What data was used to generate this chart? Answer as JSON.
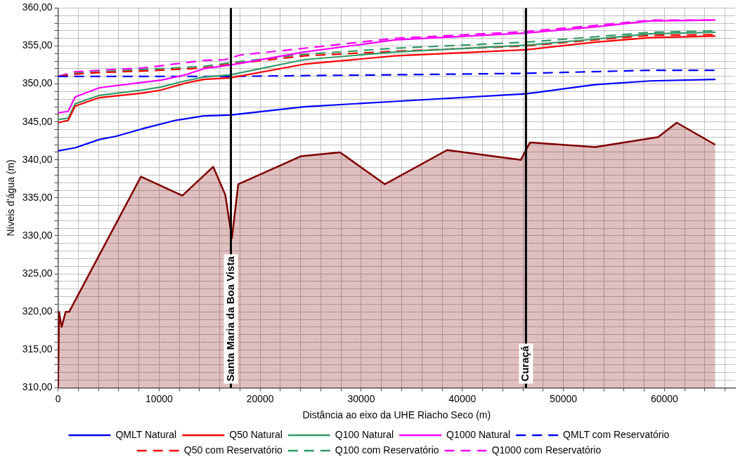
{
  "chart_data": {
    "type": "line",
    "xlabel": "Distância ao eixo da UHE Riacho Seco (m)",
    "ylabel": "Níveis d'água (m)",
    "xlim": [
      0,
      67000
    ],
    "xticks": [
      0,
      {
        "value": 2000,
        "label": null
      },
      {
        "value": 4000,
        "label": null
      },
      {
        "value": 6000,
        "label": null
      },
      {
        "value": 8000,
        "label": null
      },
      10000,
      {
        "value": 12000,
        "label": null
      },
      {
        "value": 14000,
        "label": null
      },
      {
        "value": 16000,
        "label": null
      },
      {
        "value": 18000,
        "label": null
      },
      20000,
      {
        "value": 22000,
        "label": null
      },
      {
        "value": 24000,
        "label": null
      },
      {
        "value": 26000,
        "label": null
      },
      {
        "value": 28000,
        "label": null
      },
      30000,
      {
        "value": 32000,
        "label": null
      },
      {
        "value": 34000,
        "label": null
      },
      {
        "value": 36000,
        "label": null
      },
      {
        "value": 38000,
        "label": null
      },
      40000,
      {
        "value": 42000,
        "label": null
      },
      {
        "value": 44000,
        "label": null
      },
      {
        "value": 46000,
        "label": null
      },
      {
        "value": 48000,
        "label": null
      },
      50000,
      {
        "value": 52000,
        "label": null
      },
      {
        "value": 54000,
        "label": null
      },
      {
        "value": 56000,
        "label": null
      },
      {
        "value": 58000,
        "label": null
      },
      60000,
      {
        "value": 62000,
        "label": null
      },
      {
        "value": 64000,
        "label": null
      },
      {
        "value": 66000,
        "label": null
      }
    ],
    "ylim": [
      310,
      360
    ],
    "yticks": [
      {
        "value": 310,
        "label": "310,00"
      },
      {
        "value": 311,
        "label": null
      },
      {
        "value": 312,
        "label": null
      },
      {
        "value": 313,
        "label": null
      },
      {
        "value": 314,
        "label": null
      },
      {
        "value": 315,
        "label": "315,00"
      },
      {
        "value": 316,
        "label": null
      },
      {
        "value": 317,
        "label": null
      },
      {
        "value": 318,
        "label": null
      },
      {
        "value": 319,
        "label": null
      },
      {
        "value": 320,
        "label": "320,00"
      },
      {
        "value": 321,
        "label": null
      },
      {
        "value": 322,
        "label": null
      },
      {
        "value": 323,
        "label": null
      },
      {
        "value": 324,
        "label": null
      },
      {
        "value": 325,
        "label": "325,00"
      },
      {
        "value": 326,
        "label": null
      },
      {
        "value": 327,
        "label": null
      },
      {
        "value": 328,
        "label": null
      },
      {
        "value": 329,
        "label": null
      },
      {
        "value": 330,
        "label": "330,00"
      },
      {
        "value": 331,
        "label": null
      },
      {
        "value": 332,
        "label": null
      },
      {
        "value": 333,
        "label": null
      },
      {
        "value": 334,
        "label": null
      },
      {
        "value": 335,
        "label": "335,00"
      },
      {
        "value": 336,
        "label": null
      },
      {
        "value": 337,
        "label": null
      },
      {
        "value": 338,
        "label": null
      },
      {
        "value": 339,
        "label": null
      },
      {
        "value": 340,
        "label": "340,00"
      },
      {
        "value": 341,
        "label": null
      },
      {
        "value": 342,
        "label": null
      },
      {
        "value": 343,
        "label": null
      },
      {
        "value": 344,
        "label": null
      },
      {
        "value": 345,
        "label": "345,00"
      },
      {
        "value": 346,
        "label": null
      },
      {
        "value": 347,
        "label": null
      },
      {
        "value": 348,
        "label": null
      },
      {
        "value": 349,
        "label": null
      },
      {
        "value": 350,
        "label": "350,00"
      },
      {
        "value": 351,
        "label": null
      },
      {
        "value": 352,
        "label": null
      },
      {
        "value": 353,
        "label": null
      },
      {
        "value": 354,
        "label": null
      },
      {
        "value": 355,
        "label": "355,00"
      },
      {
        "value": 356,
        "label": null
      },
      {
        "value": 357,
        "label": null
      },
      {
        "value": 358,
        "label": null
      },
      {
        "value": 359,
        "label": null
      },
      {
        "value": 360,
        "label": "360,00"
      }
    ],
    "grid": true,
    "legend": "bottom",
    "marker": "none",
    "series": [
      {
        "type": "area",
        "color": "#800000",
        "line_style": "solid",
        "x": [
          0,
          100,
          350,
          750,
          1100,
          8200,
          12300,
          15350,
          16550,
          17200,
          17830,
          24060,
          27900,
          32340,
          38500,
          45790,
          46700,
          53150,
          59380,
          61220,
          65030
        ],
        "values": [
          310,
          320,
          318,
          320,
          320,
          337.8,
          335.3,
          339.1,
          335.4,
          329.7,
          336.8,
          340.5,
          341.0,
          336.8,
          341.3,
          340.0,
          342.3,
          341.7,
          343.0,
          344.9,
          342.0
        ]
      },
      {
        "name": "QMLT Natural",
        "color": "#0000ff",
        "line_style": "solid",
        "x": [
          0,
          1700,
          4100,
          5700,
          8350,
          11600,
          14400,
          17050,
          24350,
          33300,
          46300,
          53100,
          58600,
          65050
        ],
        "values": [
          341.2,
          341.6,
          342.7,
          343.1,
          344.1,
          345.2,
          345.8,
          345.9,
          347.0,
          347.7,
          348.7,
          349.9,
          350.4,
          350.6
        ]
      },
      {
        "name": "Q50 Natural",
        "color": "#ff0000",
        "line_style": "solid",
        "x": [
          0,
          1000,
          1700,
          4100,
          8350,
          10200,
          12600,
          14400,
          17050,
          24350,
          33300,
          46300,
          53100,
          58600,
          65050
        ],
        "values": [
          344.9,
          345.2,
          347.1,
          348.2,
          348.8,
          349.2,
          350.1,
          350.6,
          350.8,
          352.6,
          353.7,
          354.5,
          355.5,
          356.1,
          356.3
        ]
      },
      {
        "name": "Q100 Natural",
        "color": "#339966",
        "line_style": "solid",
        "x": [
          0,
          1000,
          1700,
          4100,
          8350,
          10200,
          12600,
          14400,
          17050,
          24350,
          33300,
          46300,
          53100,
          58600,
          65050
        ],
        "values": [
          345.3,
          345.5,
          347.4,
          348.5,
          349.2,
          349.6,
          350.4,
          350.9,
          351.2,
          353.2,
          354.2,
          355.1,
          355.9,
          356.6,
          356.8
        ]
      },
      {
        "name": "Q1000 Natural",
        "color": "#ff00ff",
        "line_style": "solid",
        "x": [
          0,
          1000,
          1700,
          4100,
          8350,
          10200,
          12600,
          14400,
          17050,
          24350,
          33300,
          46300,
          53100,
          58600,
          65050
        ],
        "values": [
          346.2,
          346.4,
          348.3,
          349.5,
          350.2,
          350.5,
          351.2,
          352.0,
          352.5,
          354.2,
          355.8,
          356.7,
          357.5,
          358.3,
          358.4
        ]
      },
      {
        "name": "QMLT com Reservatório",
        "color": "#0000ff",
        "line_style": "dashed",
        "x": [
          0,
          17000,
          32600,
          46300,
          58600,
          65050
        ],
        "values": [
          351.0,
          351.0,
          351.2,
          351.4,
          351.8,
          351.8
        ]
      },
      {
        "name": "Q50 com Reservatório",
        "color": "#ff0000",
        "line_style": "dashed",
        "x": [
          0,
          1700,
          4100,
          8350,
          14400,
          17050,
          24350,
          33300,
          46300,
          53100,
          58600,
          65050
        ],
        "values": [
          351.0,
          351.3,
          351.5,
          351.7,
          352.1,
          352.6,
          353.7,
          354.3,
          355.0,
          355.8,
          356.4,
          356.5
        ]
      },
      {
        "name": "Q100 com Reservatório",
        "color": "#339966",
        "line_style": "dashed",
        "x": [
          0,
          1700,
          4100,
          8350,
          14400,
          17050,
          24350,
          33300,
          46300,
          53100,
          58600,
          65050
        ],
        "values": [
          351.0,
          351.4,
          351.6,
          351.9,
          352.3,
          352.8,
          353.9,
          354.7,
          355.5,
          356.2,
          356.8,
          357.0
        ]
      },
      {
        "name": "Q1000 com Reservatório",
        "color": "#ff00ff",
        "line_style": "dashed",
        "x": [
          0,
          1700,
          4100,
          8350,
          14400,
          16500,
          18000,
          24350,
          33300,
          46300,
          53100,
          58600,
          65050
        ],
        "values": [
          351.0,
          351.6,
          351.8,
          352.1,
          353.1,
          353.2,
          353.8,
          354.7,
          356.0,
          356.9,
          357.7,
          358.4,
          358.4
        ]
      }
    ],
    "ref_lines": [
      {
        "axis": "x",
        "value": 17100,
        "label": "Santa Maria da Boa Vista",
        "color": "#000000"
      },
      {
        "axis": "x",
        "value": 46300,
        "label": "Curaçá",
        "color": "#000000"
      }
    ]
  }
}
